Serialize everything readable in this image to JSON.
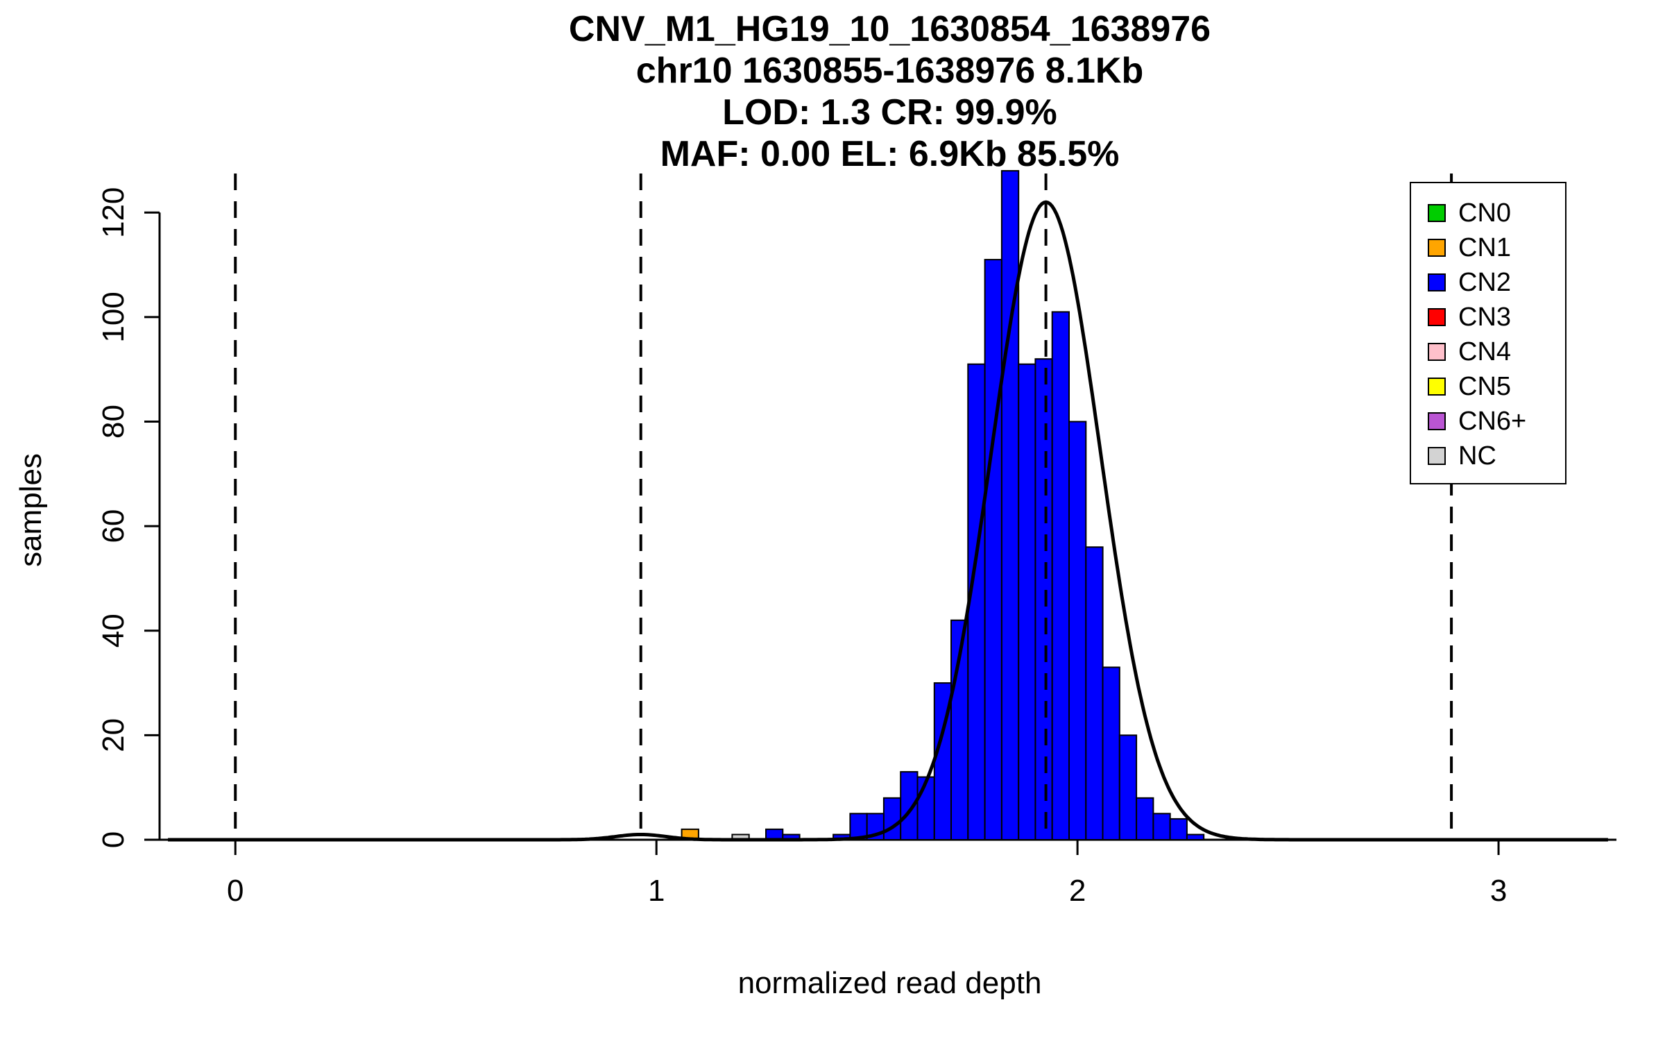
{
  "chart_data": {
    "type": "bar",
    "subtype": "histogram-with-gaussian-fit",
    "title_lines": [
      "CNV_M1_HG19_10_1630854_1638976",
      "chr10 1630855-1638976 8.1Kb",
      "LOD: 1.3 CR: 99.9%",
      "MAF: 0.00 EL: 6.9Kb 85.5%"
    ],
    "xlabel": "normalized read depth",
    "ylabel": "samples",
    "xlim": [
      -0.18,
      3.28
    ],
    "ylim": [
      0,
      130
    ],
    "x_ticks": [
      0,
      1,
      2,
      3
    ],
    "y_ticks": [
      0,
      20,
      40,
      60,
      80,
      100,
      120
    ],
    "grid": false,
    "legend_position": "top-right",
    "cn_dashed_lines_x": [
      0,
      0.963,
      1.925,
      2.888
    ],
    "bin_width": 0.04,
    "bars": [
      {
        "x0": 1.06,
        "x1": 1.1,
        "count": 2,
        "cn": "CN1"
      },
      {
        "x0": 1.18,
        "x1": 1.22,
        "count": 1,
        "cn": "NC"
      },
      {
        "x0": 1.26,
        "x1": 1.3,
        "count": 2,
        "cn": "CN2"
      },
      {
        "x0": 1.3,
        "x1": 1.34,
        "count": 1,
        "cn": "CN2"
      },
      {
        "x0": 1.42,
        "x1": 1.46,
        "count": 1,
        "cn": "CN2"
      },
      {
        "x0": 1.46,
        "x1": 1.5,
        "count": 5,
        "cn": "CN2"
      },
      {
        "x0": 1.5,
        "x1": 1.54,
        "count": 5,
        "cn": "CN2"
      },
      {
        "x0": 1.54,
        "x1": 1.58,
        "count": 8,
        "cn": "CN2"
      },
      {
        "x0": 1.58,
        "x1": 1.62,
        "count": 13,
        "cn": "CN2"
      },
      {
        "x0": 1.62,
        "x1": 1.66,
        "count": 12,
        "cn": "CN2"
      },
      {
        "x0": 1.66,
        "x1": 1.7,
        "count": 30,
        "cn": "CN2"
      },
      {
        "x0": 1.7,
        "x1": 1.74,
        "count": 42,
        "cn": "CN2"
      },
      {
        "x0": 1.74,
        "x1": 1.78,
        "count": 91,
        "cn": "CN2"
      },
      {
        "x0": 1.78,
        "x1": 1.82,
        "count": 111,
        "cn": "CN2"
      },
      {
        "x0": 1.82,
        "x1": 1.86,
        "count": 128,
        "cn": "CN2"
      },
      {
        "x0": 1.86,
        "x1": 1.9,
        "count": 91,
        "cn": "CN2"
      },
      {
        "x0": 1.9,
        "x1": 1.94,
        "count": 92,
        "cn": "CN2"
      },
      {
        "x0": 1.94,
        "x1": 1.98,
        "count": 101,
        "cn": "CN2"
      },
      {
        "x0": 1.98,
        "x1": 2.02,
        "count": 80,
        "cn": "CN2"
      },
      {
        "x0": 2.02,
        "x1": 2.06,
        "count": 56,
        "cn": "CN2"
      },
      {
        "x0": 2.06,
        "x1": 2.1,
        "count": 33,
        "cn": "CN2"
      },
      {
        "x0": 2.1,
        "x1": 2.14,
        "count": 20,
        "cn": "CN2"
      },
      {
        "x0": 2.14,
        "x1": 2.18,
        "count": 8,
        "cn": "CN2"
      },
      {
        "x0": 2.18,
        "x1": 2.22,
        "count": 5,
        "cn": "CN2"
      },
      {
        "x0": 2.22,
        "x1": 2.26,
        "count": 4,
        "cn": "CN2"
      },
      {
        "x0": 2.26,
        "x1": 2.3,
        "count": 1,
        "cn": "CN2"
      }
    ],
    "fit_curve": {
      "components": [
        {
          "mu": 0.963,
          "sigma": 0.06,
          "amp": 1.0
        },
        {
          "mu": 1.925,
          "sigma": 0.13,
          "amp": 122
        }
      ]
    },
    "legend": [
      {
        "label": "CN0",
        "color": "#00CD00"
      },
      {
        "label": "CN1",
        "color": "#FFA500"
      },
      {
        "label": "CN2",
        "color": "#0000FF"
      },
      {
        "label": "CN3",
        "color": "#FF0000"
      },
      {
        "label": "CN4",
        "color": "#FFC0CB"
      },
      {
        "label": "CN5",
        "color": "#FFFF00"
      },
      {
        "label": "CN6+",
        "color": "#BA55D3"
      },
      {
        "label": "NC",
        "color": "#D3D3D3"
      }
    ],
    "colors": {
      "CN0": "#00CD00",
      "CN1": "#FFA500",
      "CN2": "#0000FF",
      "CN3": "#FF0000",
      "CN4": "#FFC0CB",
      "CN5": "#FFFF00",
      "CN6+": "#BA55D3",
      "NC": "#D3D3D3",
      "axis": "#000000",
      "curve": "#000000"
    }
  }
}
